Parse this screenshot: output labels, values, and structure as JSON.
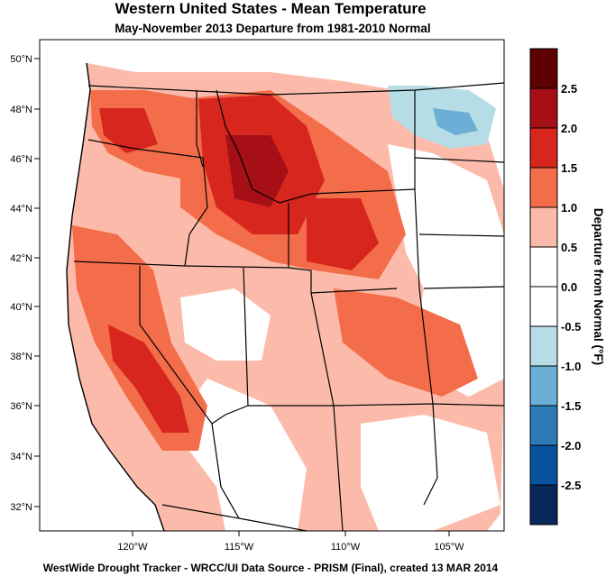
{
  "map": {
    "title": "Western United States - Mean Temperature",
    "subtitle": "May-November 2013  Departure from 1981-2010 Normal",
    "footer": "WestWide Drought Tracker - WRCC/UI  Data Source - PRISM (Final), created 13 MAR 2014",
    "lat_labels": [
      "50°N",
      "48°N",
      "46°N",
      "44°N",
      "42°N",
      "40°N",
      "38°N",
      "36°N",
      "34°N",
      "32°N"
    ],
    "lon_labels": [
      "120°W",
      "115°W",
      "110°W",
      "105°W"
    ],
    "colorbar": {
      "title": "Departure from Normal (°F)",
      "tick_labels": [
        "2.5",
        "2.0",
        "1.5",
        "1.0",
        "0.5",
        "0.0",
        "-0.5",
        "-1.0",
        "-1.5",
        "-2.0",
        "-2.5"
      ],
      "colors": [
        "#5c0000",
        "#a50f15",
        "#d7261e",
        "#f46d4b",
        "#fcbbaa",
        "#ffffff",
        "#ffffff",
        "#b6dde6",
        "#6baed6",
        "#2c7bb6",
        "#08519c",
        "#08285a"
      ]
    }
  }
}
